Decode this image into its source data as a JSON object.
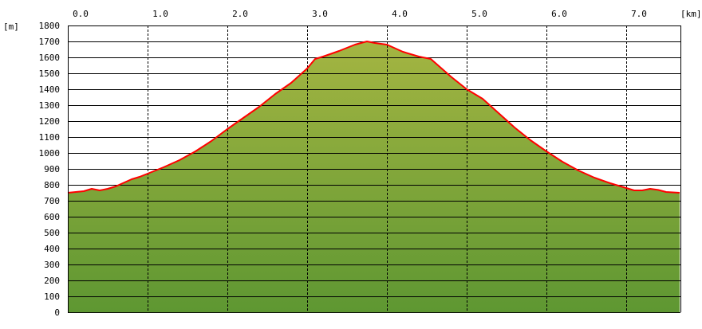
{
  "chart_data": {
    "type": "area",
    "title": "",
    "xlabel": "[km]",
    "ylabel": "[m]",
    "xlim": [
      0,
      7.67
    ],
    "ylim": [
      0,
      1800
    ],
    "x_ticks": [
      "0.0",
      "1.0",
      "2.0",
      "3.0",
      "4.0",
      "5.0",
      "6.0",
      "7.0"
    ],
    "y_ticks": [
      "0",
      "100",
      "200",
      "300",
      "400",
      "500",
      "600",
      "700",
      "800",
      "900",
      "1000",
      "1100",
      "1200",
      "1300",
      "1400",
      "1500",
      "1600",
      "1700",
      "1800"
    ],
    "grid": {
      "horizontal": "solid",
      "vertical": "dashed"
    },
    "series": [
      {
        "x": [
          0.0,
          0.2,
          0.3,
          0.4,
          0.5,
          0.6,
          0.8,
          0.9,
          1.0,
          1.2,
          1.4,
          1.6,
          1.8,
          2.0,
          2.2,
          2.4,
          2.6,
          2.8,
          3.0,
          3.1,
          3.2,
          3.4,
          3.6,
          3.75,
          3.85,
          4.0,
          4.2,
          4.4,
          4.55,
          4.8,
          5.0,
          5.2,
          5.4,
          5.6,
          5.8,
          6.0,
          6.2,
          6.4,
          6.6,
          6.8,
          7.0,
          7.1,
          7.2,
          7.3,
          7.4,
          7.5,
          7.67
        ],
        "values": [
          750,
          760,
          775,
          765,
          775,
          790,
          835,
          850,
          870,
          910,
          955,
          1010,
          1075,
          1150,
          1220,
          1290,
          1370,
          1440,
          1530,
          1590,
          1605,
          1640,
          1680,
          1700,
          1690,
          1680,
          1635,
          1605,
          1590,
          1480,
          1400,
          1340,
          1250,
          1160,
          1080,
          1010,
          945,
          890,
          845,
          810,
          780,
          765,
          765,
          775,
          768,
          755,
          750
        ]
      }
    ],
    "colors": {
      "line": "#ff0000",
      "fill_top": "#a4b542",
      "fill_bottom": "#5e9732",
      "grid": "#000000"
    }
  }
}
